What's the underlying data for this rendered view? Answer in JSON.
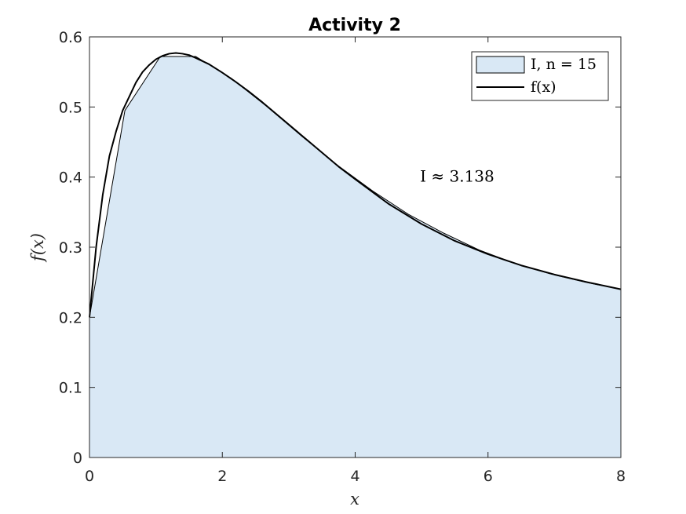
{
  "chart_data": {
    "type": "area",
    "title": "Activity 2",
    "xlabel": "x",
    "ylabel": "f(x)",
    "xlim": [
      0,
      8
    ],
    "ylim": [
      0,
      0.6
    ],
    "xticks": [
      0,
      2,
      4,
      6,
      8
    ],
    "yticks": [
      0,
      0.1,
      0.2,
      0.3,
      0.4,
      0.5,
      0.6
    ],
    "xtick_labels": [
      "0",
      "2",
      "4",
      "6",
      "8"
    ],
    "ytick_labels": [
      "0",
      "0.1",
      "0.2",
      "0.3",
      "0.4",
      "0.5",
      "0.6"
    ],
    "grid": false,
    "legend_position": "top-right",
    "annotation": {
      "text": "I ≈ 3.138",
      "x": 5.0,
      "y": 0.4
    },
    "series": [
      {
        "name": "I, n = 15",
        "kind": "trapezoid-area",
        "color": "#d9e8f5",
        "x": [
          0,
          0.5333,
          1.0667,
          1.6,
          2.1333,
          2.6667,
          3.2,
          3.7333,
          4.2667,
          4.8,
          5.3333,
          5.8667,
          6.4,
          6.9333,
          7.4667,
          8.0
        ],
        "y": [
          0.2,
          0.495,
          0.572,
          0.572,
          0.541,
          0.501,
          0.458,
          0.417,
          0.38,
          0.347,
          0.32,
          0.296,
          0.277,
          0.262,
          0.25,
          0.24
        ]
      },
      {
        "name": "f(x)",
        "kind": "line",
        "color": "#000000",
        "x": [
          0,
          0.1,
          0.2,
          0.3,
          0.4,
          0.5,
          0.6,
          0.7,
          0.8,
          0.9,
          1.0,
          1.1,
          1.2,
          1.3,
          1.4,
          1.5,
          1.6,
          1.8,
          2.0,
          2.2,
          2.4,
          2.6,
          2.8,
          3.0,
          3.25,
          3.5,
          3.75,
          4.0,
          4.5,
          5.0,
          5.5,
          6.0,
          6.5,
          7.0,
          7.5,
          8.0
        ],
        "y": [
          0.2,
          0.3,
          0.375,
          0.43,
          0.465,
          0.495,
          0.515,
          0.535,
          0.55,
          0.56,
          0.568,
          0.573,
          0.576,
          0.577,
          0.576,
          0.574,
          0.57,
          0.561,
          0.549,
          0.536,
          0.522,
          0.507,
          0.491,
          0.475,
          0.455,
          0.435,
          0.415,
          0.397,
          0.362,
          0.333,
          0.309,
          0.29,
          0.274,
          0.261,
          0.25,
          0.24
        ]
      }
    ]
  }
}
